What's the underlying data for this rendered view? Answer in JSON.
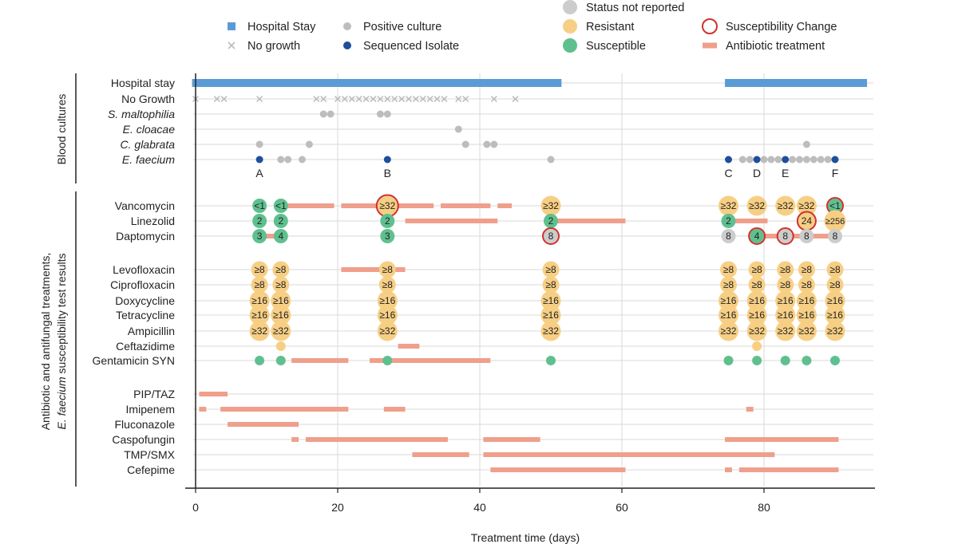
{
  "chart_data": {
    "type": "timeline",
    "xlabel": "Treatment time (days)",
    "xlim": [
      0,
      95
    ],
    "xticks": [
      0,
      20,
      40,
      60,
      80
    ],
    "colors": {
      "hospital": "#5b9bd5",
      "positive": "#bdbdbd",
      "sequenced": "#1f4e9c",
      "not_reported": "#cccccc",
      "resistant": "#f7cf84",
      "susceptible": "#5fc08f",
      "change": "#d0312d",
      "treatment": "#ef9f8b",
      "nogrowth": "#bbbbbb",
      "grid": "#d9d9d9"
    },
    "legend": [
      {
        "label": "Hospital Stay",
        "key": "hospital",
        "shape": "square"
      },
      {
        "label": "No growth",
        "key": "nogrowth",
        "shape": "cross"
      },
      {
        "label": "Positive culture",
        "key": "positive",
        "shape": "dot"
      },
      {
        "label": "Sequenced Isolate",
        "key": "sequenced",
        "shape": "dot"
      },
      {
        "label": "Status not reported",
        "key": "not_reported",
        "shape": "bigdot"
      },
      {
        "label": "Resistant",
        "key": "resistant",
        "shape": "bigdot"
      },
      {
        "label": "Susceptible",
        "key": "susceptible",
        "shape": "bigdot"
      },
      {
        "label": "Susceptibility Change",
        "key": "change",
        "shape": "ring"
      },
      {
        "label": "Antibiotic treatment",
        "key": "treatment",
        "shape": "bar"
      }
    ],
    "sections": [
      {
        "label": "Blood cultures"
      },
      {
        "label": "Antibiotic and antifungal treatments,",
        "label2_italic": "E. faecium",
        "label2_rest": " susceptibility test results"
      }
    ],
    "rows": [
      {
        "label": "Hospital stay",
        "italic": false
      },
      {
        "label": "No Growth",
        "italic": false
      },
      {
        "label": "S. maltophilia",
        "italic": true
      },
      {
        "label": "E. cloacae",
        "italic": true
      },
      {
        "label": "C. glabrata",
        "italic": true
      },
      {
        "label": "E. faecium",
        "italic": true
      },
      {
        "label": "Vancomycin",
        "italic": false
      },
      {
        "label": "Linezolid",
        "italic": false
      },
      {
        "label": "Daptomycin",
        "italic": false
      },
      {
        "label": "Levofloxacin",
        "italic": false
      },
      {
        "label": "Ciprofloxacin",
        "italic": false
      },
      {
        "label": "Doxycycline",
        "italic": false
      },
      {
        "label": "Tetracycline",
        "italic": false
      },
      {
        "label": "Ampicillin",
        "italic": false
      },
      {
        "label": "Ceftazidime",
        "italic": false
      },
      {
        "label": "Gentamicin SYN",
        "italic": false
      },
      {
        "label": "PIP/TAZ",
        "italic": false
      },
      {
        "label": "Imipenem",
        "italic": false
      },
      {
        "label": "Fluconazole",
        "italic": false
      },
      {
        "label": "Caspofungin",
        "italic": false
      },
      {
        "label": "TMP/SMX",
        "italic": false
      },
      {
        "label": "Cefepime",
        "italic": false
      }
    ],
    "hospital_stay": [
      [
        -0.5,
        51.5
      ],
      [
        74.5,
        94.5
      ]
    ],
    "no_growth_days": [
      0,
      3,
      4,
      9,
      17,
      18,
      20,
      21,
      22,
      23,
      24,
      25,
      26,
      27,
      28,
      29,
      30,
      31,
      32,
      33,
      34,
      35,
      37,
      38,
      42,
      45
    ],
    "positive_cultures": [
      {
        "row": "S. maltophilia",
        "days": [
          18,
          19,
          26,
          27
        ]
      },
      {
        "row": "E. cloacae",
        "days": [
          37
        ]
      },
      {
        "row": "C. glabrata",
        "days": [
          9,
          16,
          38,
          41,
          42,
          86
        ]
      },
      {
        "row": "E. faecium",
        "days": [
          12,
          13,
          15,
          50,
          77,
          78,
          80,
          81,
          82,
          84,
          85,
          86,
          87,
          88,
          89
        ]
      }
    ],
    "sequenced_isolates": [
      {
        "day": 9,
        "label": "A"
      },
      {
        "day": 27,
        "label": "B"
      },
      {
        "day": 75,
        "label": "C"
      },
      {
        "day": 79,
        "label": "D"
      },
      {
        "day": 83,
        "label": "E"
      },
      {
        "day": 90,
        "label": "F"
      }
    ],
    "treatments": [
      {
        "row": "Vancomycin",
        "ranges": [
          [
            9,
            9.8
          ],
          [
            12,
            19.5
          ],
          [
            20.5,
            33.5
          ],
          [
            34.5,
            41.5
          ],
          [
            42.5,
            44.5
          ],
          [
            74.5,
            75.5
          ],
          [
            89,
            91
          ]
        ]
      },
      {
        "row": "Linezolid",
        "ranges": [
          [
            29.5,
            42.5
          ],
          [
            50,
            60.5
          ],
          [
            75,
            80.5
          ]
        ]
      },
      {
        "row": "Daptomycin",
        "ranges": [
          [
            9,
            12
          ],
          [
            79,
            90
          ]
        ]
      },
      {
        "row": "Levofloxacin",
        "ranges": [
          [
            20.5,
            29.5
          ]
        ]
      },
      {
        "row": "Ceftazidime",
        "ranges": [
          [
            28.5,
            31.5
          ]
        ]
      },
      {
        "row": "Gentamicin SYN",
        "ranges": [
          [
            13.5,
            21.5
          ],
          [
            24.5,
            41.5
          ]
        ]
      },
      {
        "row": "PIP/TAZ",
        "ranges": [
          [
            0.5,
            4.5
          ]
        ]
      },
      {
        "row": "Imipenem",
        "ranges": [
          [
            0.5,
            1.5
          ],
          [
            3.5,
            21.5
          ],
          [
            26.5,
            29.5
          ],
          [
            77.5,
            78.5
          ]
        ]
      },
      {
        "row": "Fluconazole",
        "ranges": [
          [
            4.5,
            14.5
          ]
        ]
      },
      {
        "row": "Caspofungin",
        "ranges": [
          [
            13.5,
            14.5
          ],
          [
            15.5,
            35.5
          ],
          [
            40.5,
            48.5
          ],
          [
            74.5,
            90.5
          ]
        ]
      },
      {
        "row": "TMP/SMX",
        "ranges": [
          [
            30.5,
            38.5
          ],
          [
            40.5,
            81.5
          ]
        ]
      },
      {
        "row": "Cefepime",
        "ranges": [
          [
            41.5,
            60.5
          ],
          [
            74.5,
            75.5
          ],
          [
            76.5,
            90.5
          ]
        ]
      }
    ],
    "susceptibility": [
      {
        "row": "Vancomycin",
        "results": [
          {
            "day": 9,
            "value": "<1",
            "status": "susceptible"
          },
          {
            "day": 12,
            "value": "<1",
            "status": "susceptible"
          },
          {
            "day": 27,
            "value": "≥32",
            "status": "resistant",
            "change": true
          },
          {
            "day": 50,
            "value": "≥32",
            "status": "resistant"
          },
          {
            "day": 75,
            "value": "≥32",
            "status": "resistant"
          },
          {
            "day": 79,
            "value": "≥32",
            "status": "resistant"
          },
          {
            "day": 83,
            "value": "≥32",
            "status": "resistant"
          },
          {
            "day": 86,
            "value": "≥32",
            "status": "resistant"
          },
          {
            "day": 90,
            "value": "<1",
            "status": "susceptible",
            "change": true
          }
        ]
      },
      {
        "row": "Linezolid",
        "results": [
          {
            "day": 9,
            "value": "2",
            "status": "susceptible"
          },
          {
            "day": 12,
            "value": "2",
            "status": "susceptible"
          },
          {
            "day": 27,
            "value": "2",
            "status": "susceptible"
          },
          {
            "day": 50,
            "value": "2",
            "status": "susceptible"
          },
          {
            "day": 75,
            "value": "2",
            "status": "susceptible"
          },
          {
            "day": 86,
            "value": "24",
            "status": "resistant",
            "change": true
          },
          {
            "day": 90,
            "value": "≥256",
            "status": "resistant"
          }
        ]
      },
      {
        "row": "Daptomycin",
        "results": [
          {
            "day": 9,
            "value": "3",
            "status": "susceptible"
          },
          {
            "day": 12,
            "value": "4",
            "status": "susceptible"
          },
          {
            "day": 27,
            "value": "3",
            "status": "susceptible"
          },
          {
            "day": 50,
            "value": "8",
            "status": "not_reported",
            "change": true
          },
          {
            "day": 75,
            "value": "8",
            "status": "not_reported"
          },
          {
            "day": 79,
            "value": "4",
            "status": "susceptible",
            "change": true
          },
          {
            "day": 83,
            "value": "8",
            "status": "not_reported",
            "change": true
          },
          {
            "day": 86,
            "value": "8",
            "status": "not_reported"
          },
          {
            "day": 90,
            "value": "8",
            "status": "not_reported"
          }
        ]
      },
      {
        "row": "Levofloxacin",
        "results": [
          {
            "day": 9,
            "value": "≥8",
            "status": "resistant"
          },
          {
            "day": 12,
            "value": "≥8",
            "status": "resistant"
          },
          {
            "day": 27,
            "value": "≥8",
            "status": "resistant"
          },
          {
            "day": 50,
            "value": "≥8",
            "status": "resistant"
          },
          {
            "day": 75,
            "value": "≥8",
            "status": "resistant"
          },
          {
            "day": 79,
            "value": "≥8",
            "status": "resistant"
          },
          {
            "day": 83,
            "value": "≥8",
            "status": "resistant"
          },
          {
            "day": 86,
            "value": "≥8",
            "status": "resistant"
          },
          {
            "day": 90,
            "value": "≥8",
            "status": "resistant"
          }
        ]
      },
      {
        "row": "Ciprofloxacin",
        "results": [
          {
            "day": 9,
            "value": "≥8",
            "status": "resistant"
          },
          {
            "day": 12,
            "value": "≥8",
            "status": "resistant"
          },
          {
            "day": 27,
            "value": "≥8",
            "status": "resistant"
          },
          {
            "day": 50,
            "value": "≥8",
            "status": "resistant"
          },
          {
            "day": 75,
            "value": "≥8",
            "status": "resistant"
          },
          {
            "day": 79,
            "value": "≥8",
            "status": "resistant"
          },
          {
            "day": 83,
            "value": "≥8",
            "status": "resistant"
          },
          {
            "day": 86,
            "value": "≥8",
            "status": "resistant"
          },
          {
            "day": 90,
            "value": "≥8",
            "status": "resistant"
          }
        ]
      },
      {
        "row": "Doxycycline",
        "results": [
          {
            "day": 9,
            "value": "≥16",
            "status": "resistant"
          },
          {
            "day": 12,
            "value": "≥16",
            "status": "resistant"
          },
          {
            "day": 27,
            "value": "≥16",
            "status": "resistant"
          },
          {
            "day": 50,
            "value": "≥16",
            "status": "resistant"
          },
          {
            "day": 75,
            "value": "≥16",
            "status": "resistant"
          },
          {
            "day": 79,
            "value": "≥16",
            "status": "resistant"
          },
          {
            "day": 83,
            "value": "≥16",
            "status": "resistant"
          },
          {
            "day": 86,
            "value": "≥16",
            "status": "resistant"
          },
          {
            "day": 90,
            "value": "≥16",
            "status": "resistant"
          }
        ]
      },
      {
        "row": "Tetracycline",
        "results": [
          {
            "day": 9,
            "value": "≥16",
            "status": "resistant"
          },
          {
            "day": 12,
            "value": "≥16",
            "status": "resistant"
          },
          {
            "day": 27,
            "value": "≥16",
            "status": "resistant"
          },
          {
            "day": 50,
            "value": "≥16",
            "status": "resistant"
          },
          {
            "day": 75,
            "value": "≥16",
            "status": "resistant"
          },
          {
            "day": 79,
            "value": "≥16",
            "status": "resistant"
          },
          {
            "day": 83,
            "value": "≥16",
            "status": "resistant"
          },
          {
            "day": 86,
            "value": "≥16",
            "status": "resistant"
          },
          {
            "day": 90,
            "value": "≥16",
            "status": "resistant"
          }
        ]
      },
      {
        "row": "Ampicillin",
        "results": [
          {
            "day": 9,
            "value": "≥32",
            "status": "resistant"
          },
          {
            "day": 12,
            "value": "≥32",
            "status": "resistant"
          },
          {
            "day": 27,
            "value": "≥32",
            "status": "resistant"
          },
          {
            "day": 50,
            "value": "≥32",
            "status": "resistant"
          },
          {
            "day": 75,
            "value": "≥32",
            "status": "resistant"
          },
          {
            "day": 79,
            "value": "≥32",
            "status": "resistant"
          },
          {
            "day": 83,
            "value": "≥32",
            "status": "resistant"
          },
          {
            "day": 86,
            "value": "≥32",
            "status": "resistant"
          },
          {
            "day": 90,
            "value": "≥32",
            "status": "resistant"
          }
        ]
      },
      {
        "row": "Ceftazidime",
        "results": [
          {
            "day": 12,
            "value": "",
            "status": "resistant",
            "small": true
          },
          {
            "day": 79,
            "value": "",
            "status": "resistant",
            "small": true
          }
        ]
      },
      {
        "row": "Gentamicin SYN",
        "results": [
          {
            "day": 9,
            "value": "",
            "status": "susceptible",
            "small": true
          },
          {
            "day": 12,
            "value": "",
            "status": "susceptible",
            "small": true
          },
          {
            "day": 27,
            "value": "",
            "status": "susceptible",
            "small": true
          },
          {
            "day": 50,
            "value": "",
            "status": "susceptible",
            "small": true
          },
          {
            "day": 75,
            "value": "",
            "status": "susceptible",
            "small": true
          },
          {
            "day": 79,
            "value": "",
            "status": "susceptible",
            "small": true
          },
          {
            "day": 83,
            "value": "",
            "status": "susceptible",
            "small": true
          },
          {
            "day": 86,
            "value": "",
            "status": "susceptible",
            "small": true
          },
          {
            "day": 90,
            "value": "",
            "status": "susceptible",
            "small": true
          }
        ]
      }
    ]
  }
}
